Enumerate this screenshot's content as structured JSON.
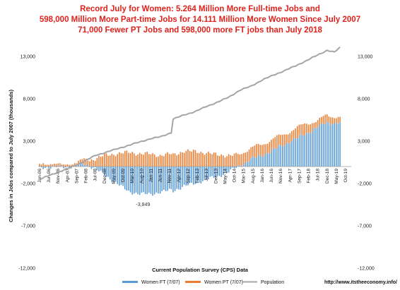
{
  "chart_data": {
    "type": "bar",
    "title_lines": [
      "Record July for Women:  5.264 Million More Full-time  Jobs  and",
      "598,000 Million More Part-time Jobs for 14.111 Million More Women Since July 2007",
      "71,000 Fewer PT Jobs and 598,000 more FT jobs than July 2018"
    ],
    "ylabel": "Changes in Jobs compared to  July 2007 (thousands)",
    "xlabel": "Current Population Survey (CPS) Data",
    "ylim": [
      -12000,
      14000
    ],
    "y_ticks": [
      13000,
      8000,
      3000,
      -2000,
      -7000,
      -12000
    ],
    "y_tick_labels": [
      "13,000",
      "8,000",
      "3,000",
      "-2,000",
      "-7,000",
      "-12,000"
    ],
    "x_tick_labels": [
      "Jan-06",
      "Jun-06",
      "Nov-06",
      "Apr-07",
      "Sep-07",
      "Feb-08",
      "Jul-08",
      "Dec-08",
      "May-09",
      "Oct-09",
      "Mar-10",
      "Aug-10",
      "Jan-11",
      "Jun-11",
      "Nov-11",
      "Apr-12",
      "Sep-12",
      "Feb-13",
      "Jul-13",
      "Dec-13",
      "May-14",
      "Oct-14",
      "Mar-15",
      "Aug-15",
      "Jan-16",
      "Jun-16",
      "Nov-16",
      "Apr-17",
      "Sep-17",
      "Feb-18",
      "Jul-18",
      "Dec-18",
      "May-19",
      "Oct-19"
    ],
    "start": "Jan-06",
    "interval": "month",
    "anchor_points": [
      {
        "date": "Jan-06",
        "ft": -100,
        "pt": 300,
        "pop": -1500
      },
      {
        "date": "Jul-07",
        "ft": 0,
        "pt": 0,
        "pop": 0
      },
      {
        "date": "Jan-08",
        "ft": 300,
        "pt": 600,
        "pop": 600
      },
      {
        "date": "Jul-08",
        "ft": -200,
        "pt": 900,
        "pop": 1300
      },
      {
        "date": "Jan-09",
        "ft": -1200,
        "pt": 1400,
        "pop": 1700
      },
      {
        "date": "Jul-09",
        "ft": -2000,
        "pt": 1500,
        "pop": 2100
      },
      {
        "date": "Jan-10",
        "ft": -3000,
        "pt": 1700,
        "pop": 2500
      },
      {
        "date": "Jul-10",
        "ft": -3200,
        "pt": 1500,
        "pop": 2900
      },
      {
        "date": "Jan-11",
        "ft": -3300,
        "pt": 1500,
        "pop": 3300
      },
      {
        "date": "Jun-11",
        "ft": -3000,
        "pt": 1300,
        "pop": 3500
      },
      {
        "date": "Dec-11",
        "ft": -2800,
        "pt": 1500,
        "pop": 4000
      },
      {
        "date": "Jan-12",
        "ft": -2900,
        "pt": 1400,
        "pop": 5600
      },
      {
        "date": "Jul-12",
        "ft": -2300,
        "pt": 1800,
        "pop": 6100
      },
      {
        "date": "Jan-13",
        "ft": -2000,
        "pt": 1800,
        "pop": 6500
      },
      {
        "date": "Jul-13",
        "ft": -1500,
        "pt": 1600,
        "pop": 7100
      },
      {
        "date": "Jan-14",
        "ft": -1200,
        "pt": 1400,
        "pop": 7600
      },
      {
        "date": "Jul-14",
        "ft": -600,
        "pt": 1300,
        "pop": 8200
      },
      {
        "date": "Jan-15",
        "ft": 100,
        "pt": 1400,
        "pop": 9000
      },
      {
        "date": "Jul-15",
        "ft": 900,
        "pt": 1300,
        "pop": 9500
      },
      {
        "date": "Jan-16",
        "ft": 1300,
        "pt": 1300,
        "pop": 10200
      },
      {
        "date": "Jul-16",
        "ft": 2000,
        "pt": 1300,
        "pop": 10800
      },
      {
        "date": "Jan-17",
        "ft": 2600,
        "pt": 1200,
        "pop": 11300
      },
      {
        "date": "Jul-17",
        "ft": 3300,
        "pt": 1200,
        "pop": 11900
      },
      {
        "date": "Jan-18",
        "ft": 3900,
        "pt": 1200,
        "pop": 12500
      },
      {
        "date": "Jul-18",
        "ft": 4700,
        "pt": 700,
        "pop": 13200
      },
      {
        "date": "Dec-18",
        "ft": 5200,
        "pt": 900,
        "pop": 13700
      },
      {
        "date": "Apr-19",
        "ft": 5100,
        "pt": 800,
        "pop": 13500
      },
      {
        "date": "Jul-19",
        "ft": 5264,
        "pt": 598,
        "pop": 14111
      }
    ],
    "series": [
      {
        "name": "Women FT (7/07)",
        "color": "#5b9bd5",
        "key": "ft",
        "kind": "bar"
      },
      {
        "name": "Women PT (7/07)",
        "color": "#ed7d31",
        "key": "pt",
        "kind": "bar"
      },
      {
        "name": "Population",
        "color": "#a5a5a5",
        "key": "pop",
        "kind": "line"
      }
    ],
    "annotation": {
      "label": "-3,849",
      "date": "Aug-10"
    },
    "legend": "bottom",
    "grid": false
  },
  "footer": {
    "url": "http://www.itstheeconomy.info/"
  }
}
